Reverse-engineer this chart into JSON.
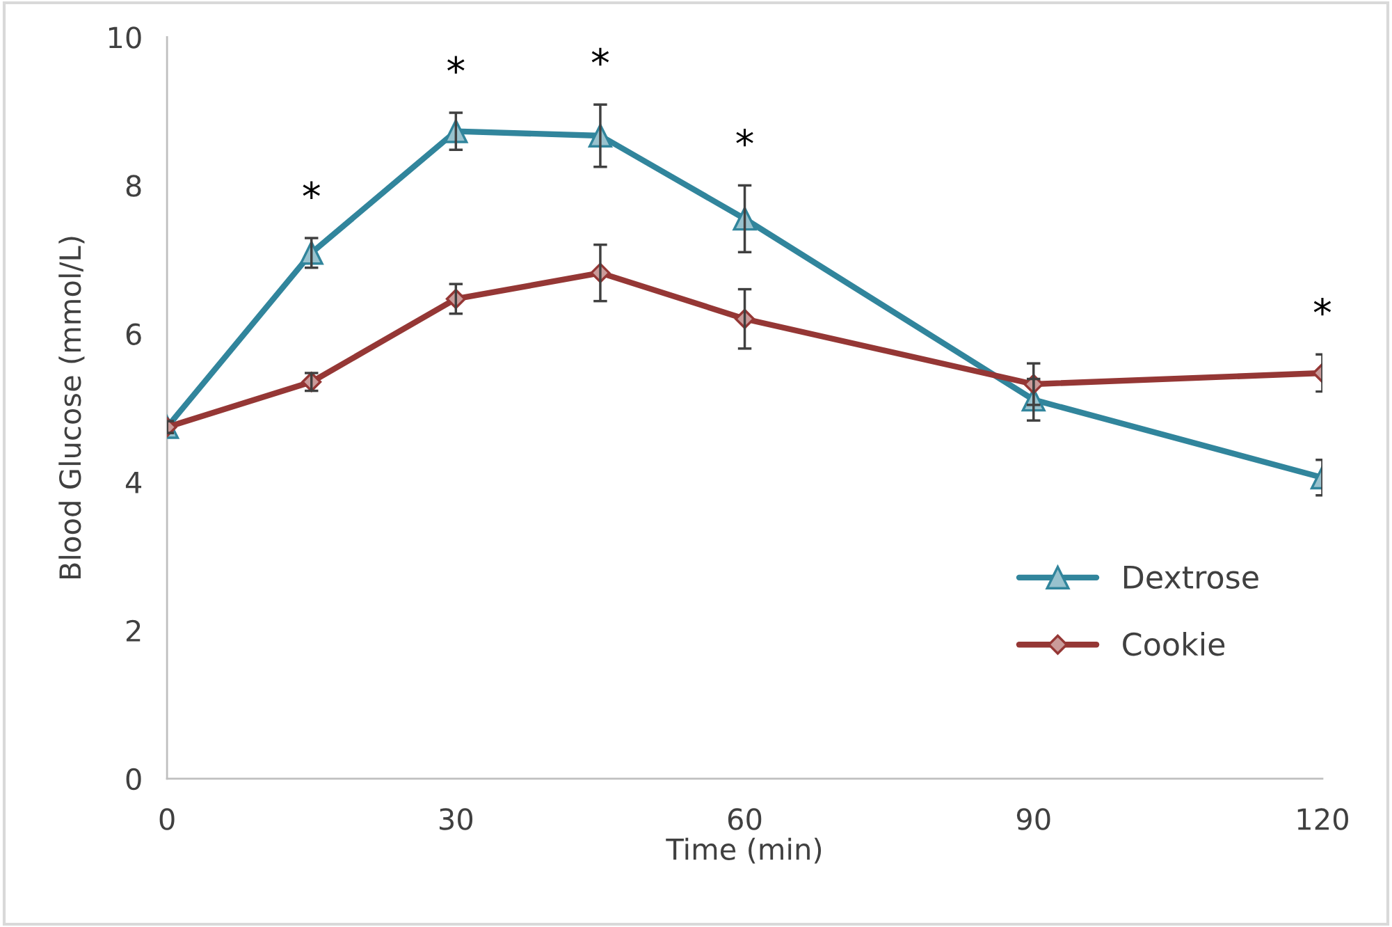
{
  "chart_data": {
    "type": "line",
    "xlabel": "Time (min)",
    "ylabel": "Blood Glucose (mmol/L)",
    "x": [
      0,
      15,
      30,
      45,
      60,
      90,
      120
    ],
    "series": [
      {
        "name": "Dextrose",
        "color": "#31859c",
        "marker": "triangle",
        "values": [
          4.74,
          7.09,
          8.73,
          8.67,
          7.55,
          5.11,
          4.06
        ],
        "errors": [
          0.08,
          0.2,
          0.25,
          0.42,
          0.45,
          0.28,
          0.24
        ]
      },
      {
        "name": "Cookie",
        "color": "#953735",
        "marker": "diamond",
        "values": [
          4.74,
          5.35,
          6.47,
          6.82,
          6.2,
          5.32,
          5.47
        ],
        "errors": [
          0.08,
          0.12,
          0.2,
          0.38,
          0.4,
          0.28,
          0.25
        ]
      }
    ],
    "xlim": [
      0,
      120
    ],
    "xticks": [
      0,
      30,
      60,
      90,
      120
    ],
    "ylim": [
      0,
      10
    ],
    "yticks": [
      0,
      2,
      4,
      6,
      8,
      10
    ],
    "grid": false,
    "legend": "bottom right",
    "line_style": "solid",
    "annotations": [
      {
        "text": "*",
        "x": 15,
        "y": 7.09
      },
      {
        "text": "*",
        "x": 30,
        "y": 8.73
      },
      {
        "text": "*",
        "x": 45,
        "y": 8.67
      },
      {
        "text": "*",
        "x": 60,
        "y": 7.55
      },
      {
        "text": "*",
        "x": 120,
        "y": 5.47
      }
    ]
  }
}
